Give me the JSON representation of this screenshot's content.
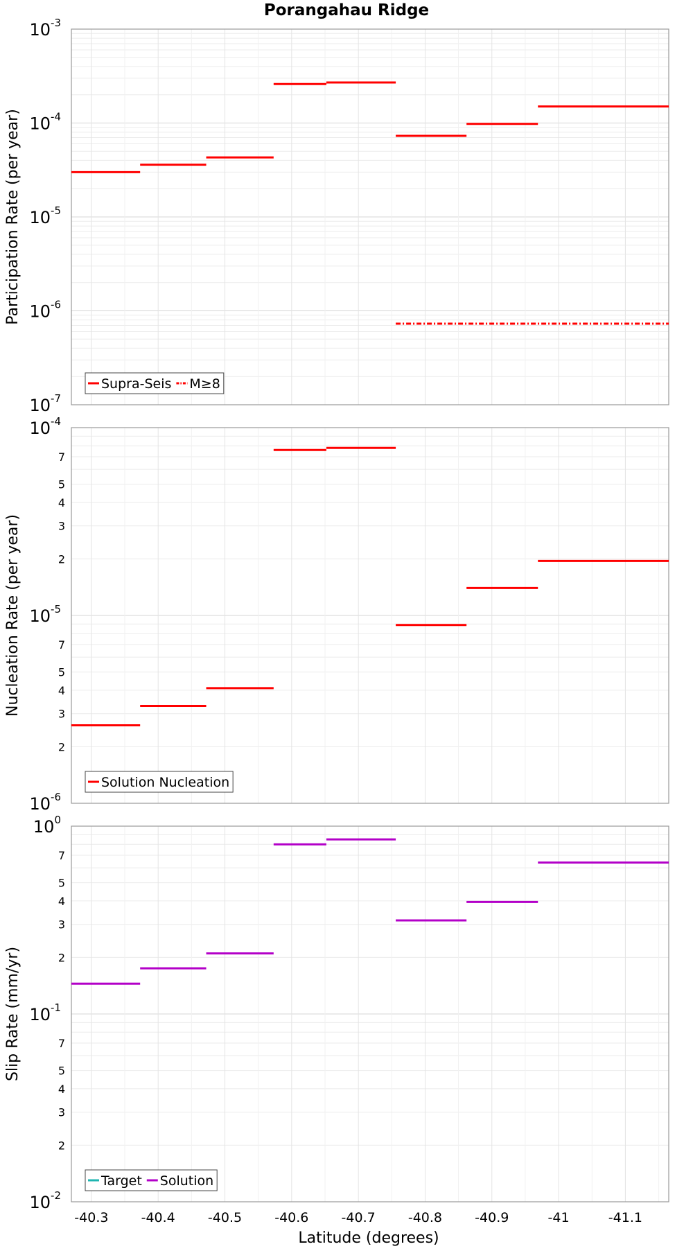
{
  "figure": {
    "title": "Porangahau Ridge",
    "xlabel": "Latitude (degrees)"
  },
  "x_axis": {
    "reversed": true,
    "xlim": [
      -40.27,
      -41.165
    ],
    "ticks": [
      -40.3,
      -40.4,
      -40.5,
      -40.6,
      -40.7,
      -40.8,
      -40.9,
      -41,
      -41.1
    ],
    "tick_labels": [
      "-40.3",
      "-40.4",
      "-40.5",
      "-40.6",
      "-40.7",
      "-40.8",
      "-40.9",
      "-41",
      "-41.1"
    ]
  },
  "chart_data": [
    {
      "type": "line",
      "title": "Porangahau Ridge",
      "ylabel": "Participation Rate (per year)",
      "yscale": "log",
      "ylim": [
        1e-07,
        0.001
      ],
      "grid": true,
      "legend_position": "bottom-left",
      "major_ticks": [
        {
          "value": 0.001,
          "base": "10",
          "exp": "-3"
        },
        {
          "value": 0.0001,
          "base": "10",
          "exp": "-4"
        },
        {
          "value": 1e-05,
          "base": "10",
          "exp": "-5"
        },
        {
          "value": 1e-06,
          "base": "10",
          "exp": "-6"
        },
        {
          "value": 1e-07,
          "base": "10",
          "exp": "-7"
        }
      ],
      "minor_tick_labels": [],
      "series": [
        {
          "name": "Supra-Seis",
          "color": "#ff0000",
          "style": "solid",
          "segments": [
            {
              "x": [
                -40.27,
                -40.373
              ],
              "y": 3e-05
            },
            {
              "x": [
                -40.373,
                -40.472
              ],
              "y": 3.6e-05
            },
            {
              "x": [
                -40.472,
                -40.573
              ],
              "y": 4.3e-05
            },
            {
              "x": [
                -40.573,
                -40.652
              ],
              "y": 0.00026
            },
            {
              "x": [
                -40.652,
                -40.756
              ],
              "y": 0.00027
            },
            {
              "x": [
                -40.756,
                -40.862
              ],
              "y": 7.3e-05
            },
            {
              "x": [
                -40.862,
                -40.969
              ],
              "y": 9.8e-05
            },
            {
              "x": [
                -40.969,
                -41.165
              ],
              "y": 0.00015
            }
          ]
        },
        {
          "name": "M≥8",
          "color": "#ff0000",
          "style": "dashdot",
          "segments": [
            {
              "x": [
                -40.756,
                -41.165
              ],
              "y": 7.3e-07
            }
          ]
        }
      ]
    },
    {
      "type": "line",
      "ylabel": "Nucleation Rate (per year)",
      "yscale": "log",
      "ylim": [
        1e-06,
        0.0001
      ],
      "grid": true,
      "legend_position": "bottom-left",
      "major_ticks": [
        {
          "value": 0.0001,
          "base": "10",
          "exp": "-4"
        },
        {
          "value": 1e-05,
          "base": "10",
          "exp": "-5"
        },
        {
          "value": 1e-06,
          "base": "10",
          "exp": "-6"
        }
      ],
      "minor_tick_labels": [
        {
          "value": 7e-05,
          "label": "7"
        },
        {
          "value": 5e-05,
          "label": "5"
        },
        {
          "value": 4e-05,
          "label": "4"
        },
        {
          "value": 3e-05,
          "label": "3"
        },
        {
          "value": 2e-05,
          "label": "2"
        },
        {
          "value": 7e-06,
          "label": "7"
        },
        {
          "value": 5e-06,
          "label": "5"
        },
        {
          "value": 4e-06,
          "label": "4"
        },
        {
          "value": 3e-06,
          "label": "3"
        },
        {
          "value": 2e-06,
          "label": "2"
        }
      ],
      "series": [
        {
          "name": "Solution Nucleation",
          "color": "#ff0000",
          "style": "solid",
          "segments": [
            {
              "x": [
                -40.27,
                -40.373
              ],
              "y": 2.6e-06
            },
            {
              "x": [
                -40.373,
                -40.472
              ],
              "y": 3.3e-06
            },
            {
              "x": [
                -40.472,
                -40.573
              ],
              "y": 4.1e-06
            },
            {
              "x": [
                -40.573,
                -40.652
              ],
              "y": 7.6e-05
            },
            {
              "x": [
                -40.652,
                -40.756
              ],
              "y": 7.8e-05
            },
            {
              "x": [
                -40.756,
                -40.862
              ],
              "y": 8.9e-06
            },
            {
              "x": [
                -40.862,
                -40.969
              ],
              "y": 1.4e-05
            },
            {
              "x": [
                -40.969,
                -41.165
              ],
              "y": 1.95e-05
            }
          ]
        }
      ]
    },
    {
      "type": "line",
      "ylabel": "Slip Rate (mm/yr)",
      "yscale": "log",
      "ylim": [
        0.01,
        1
      ],
      "grid": true,
      "legend_position": "bottom-left",
      "major_ticks": [
        {
          "value": 1,
          "base": "10",
          "exp": "0"
        },
        {
          "value": 0.1,
          "base": "10",
          "exp": "-1"
        },
        {
          "value": 0.01,
          "base": "10",
          "exp": "-2"
        }
      ],
      "minor_tick_labels": [
        {
          "value": 0.7,
          "label": "7"
        },
        {
          "value": 0.5,
          "label": "5"
        },
        {
          "value": 0.4,
          "label": "4"
        },
        {
          "value": 0.3,
          "label": "3"
        },
        {
          "value": 0.2,
          "label": "2"
        },
        {
          "value": 0.07,
          "label": "7"
        },
        {
          "value": 0.05,
          "label": "5"
        },
        {
          "value": 0.04,
          "label": "4"
        },
        {
          "value": 0.03,
          "label": "3"
        },
        {
          "value": 0.02,
          "label": "2"
        }
      ],
      "series": [
        {
          "name": "Target",
          "color": "#1fb5b0",
          "style": "solid",
          "segments": []
        },
        {
          "name": "Solution",
          "color": "#b300c8",
          "style": "solid",
          "segments": [
            {
              "x": [
                -40.27,
                -40.373
              ],
              "y": 0.145
            },
            {
              "x": [
                -40.373,
                -40.472
              ],
              "y": 0.175
            },
            {
              "x": [
                -40.472,
                -40.573
              ],
              "y": 0.21
            },
            {
              "x": [
                -40.573,
                -40.652
              ],
              "y": 0.8
            },
            {
              "x": [
                -40.652,
                -40.756
              ],
              "y": 0.85
            },
            {
              "x": [
                -40.756,
                -40.862
              ],
              "y": 0.315
            },
            {
              "x": [
                -40.862,
                -40.969
              ],
              "y": 0.395
            },
            {
              "x": [
                -40.969,
                -41.165
              ],
              "y": 0.64
            }
          ]
        }
      ]
    }
  ]
}
